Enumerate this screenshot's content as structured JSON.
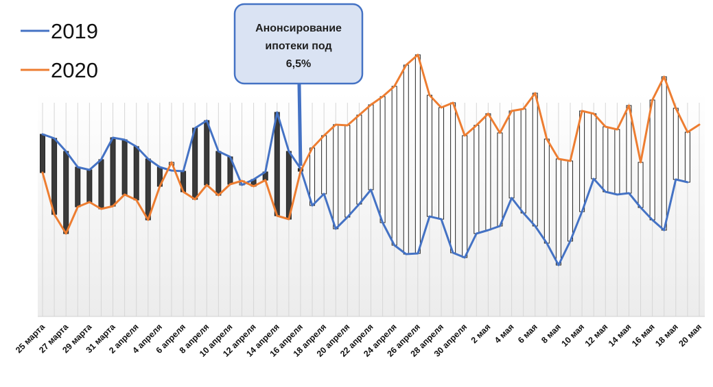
{
  "chart_data": {
    "type": "line",
    "x_tick_labels": [
      "25 марта",
      "27 марта",
      "29 марта",
      "31 марта",
      "2 апреля",
      "4 апреля",
      "6 апреля",
      "8 апреля",
      "10 апреля",
      "12 апреля",
      "14 апреля",
      "16 апреля",
      "18 апреля",
      "20 апреля",
      "22 апреля",
      "24 апреля",
      "26 апреля",
      "28 апреля",
      "30 апреля",
      "2 мая",
      "4 мая",
      "6 мая",
      "8 мая",
      "10 мая",
      "12 мая",
      "14 мая",
      "16 мая",
      "18 мая",
      "20 мая"
    ],
    "series": [
      {
        "name": "2019",
        "color": "#4472C4",
        "values": [
          196,
          202,
          221,
          244,
          248,
          233,
          201,
          204,
          214,
          232,
          244,
          249,
          250,
          187,
          176,
          221,
          229,
          270,
          262,
          251,
          164,
          221,
          246,
          300,
          283,
          334,
          317,
          298,
          277,
          325,
          358,
          371,
          370,
          316,
          320,
          369,
          376,
          341,
          336,
          330,
          289,
          311,
          330,
          355,
          387,
          352,
          309,
          261,
          280,
          284,
          282,
          303,
          321,
          336,
          262,
          266
        ]
      },
      {
        "name": "2020",
        "color": "#ED7D31",
        "values": [
          252,
          313,
          341,
          302,
          295,
          305,
          301,
          284,
          292,
          321,
          272,
          237,
          280,
          291,
          270,
          285,
          269,
          264,
          272,
          263,
          315,
          320,
          250,
          216,
          198,
          182,
          183,
          168,
          153,
          141,
          126,
          95,
          80,
          139,
          157,
          150,
          198,
          183,
          166,
          194,
          162,
          159,
          136,
          203,
          232,
          235,
          162,
          166,
          185,
          189,
          154,
          237,
          146,
          112,
          158,
          193,
          182
        ]
      }
    ],
    "y_range": [
      0,
      460
    ],
    "y_axis_inverted": true,
    "x_range_index": [
      0,
      56
    ],
    "grid": false,
    "legend_position": "top-left"
  },
  "annotation": {
    "lines": [
      "Анонсирование",
      "ипотеки под",
      "6,5%"
    ],
    "points_to_index": 22,
    "fill": "#DAE3F3",
    "border": "#4472C4"
  }
}
